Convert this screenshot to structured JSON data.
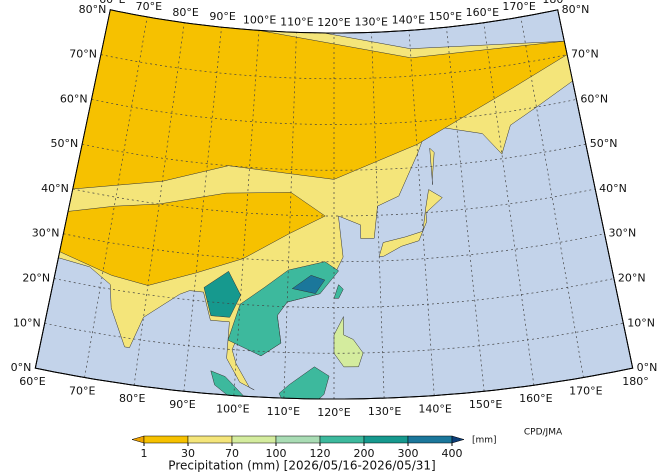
{
  "map": {
    "longitudes": [
      {
        "value": 60,
        "label": "60°E"
      },
      {
        "value": 70,
        "label": "70°E"
      },
      {
        "value": 80,
        "label": "80°E"
      },
      {
        "value": 90,
        "label": "90°E"
      },
      {
        "value": 100,
        "label": "100°E"
      },
      {
        "value": 110,
        "label": "110°E"
      },
      {
        "value": 120,
        "label": "120°E"
      },
      {
        "value": 130,
        "label": "130°E"
      },
      {
        "value": 140,
        "label": "140°E"
      },
      {
        "value": 150,
        "label": "150°E"
      },
      {
        "value": 160,
        "label": "160°E"
      },
      {
        "value": 170,
        "label": "170°E"
      },
      {
        "value": 180,
        "label": "180°"
      }
    ],
    "latitudes": [
      {
        "value": 0,
        "label": "0°N"
      },
      {
        "value": 10,
        "label": "10°N"
      },
      {
        "value": 20,
        "label": "20°N"
      },
      {
        "value": 30,
        "label": "30°N"
      },
      {
        "value": 40,
        "label": "40°N"
      },
      {
        "value": 50,
        "label": "50°N"
      },
      {
        "value": 60,
        "label": "60°N"
      },
      {
        "value": 70,
        "label": "70°N"
      },
      {
        "value": 80,
        "label": "80°N"
      }
    ],
    "credit": "CPD/JMA"
  },
  "colorbar": {
    "title": "Precipitation (mm) [2026/05/16-2026/05/31]",
    "unit": "[mm]",
    "ticks": [
      1,
      30,
      70,
      100,
      120,
      200,
      300,
      400
    ],
    "colors": [
      "#eea200",
      "#f6c100",
      "#f4e57a",
      "#d4ec9e",
      "#a9dcb4",
      "#3db99d",
      "#16998e",
      "#1b779b",
      "#0c3d78"
    ]
  }
}
